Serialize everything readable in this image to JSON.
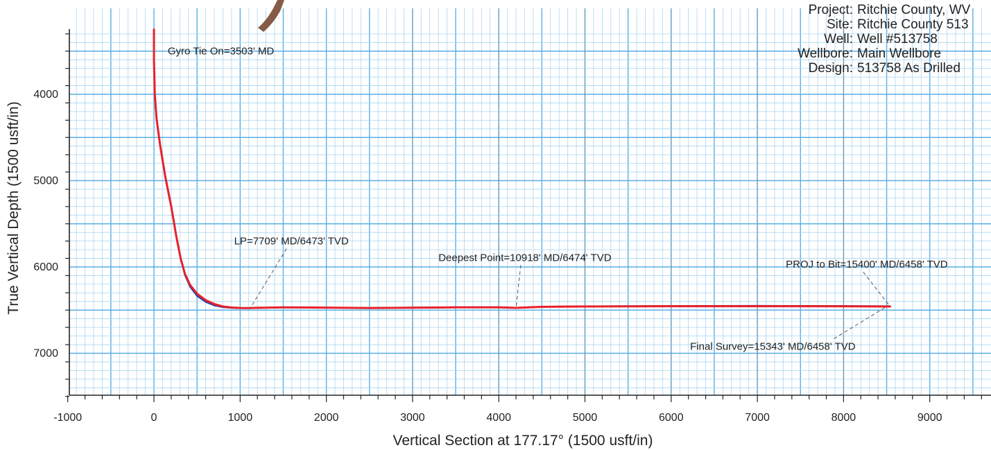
{
  "header": {
    "rows": [
      {
        "label": "Project:",
        "value": "Ritchie County, WV"
      },
      {
        "label": "Site:",
        "value": "Ritchie County 513"
      },
      {
        "label": "Well:",
        "value": "Well #513758"
      },
      {
        "label": "Wellbore:",
        "value": "Main Wellbore"
      },
      {
        "label": "Design:",
        "value": "513758 As Drilled"
      }
    ]
  },
  "chart_data": {
    "type": "line",
    "title": "",
    "xlabel": "Vertical Section at 177.17° (1500 usft/in)",
    "ylabel": "True Vertical Depth (1500 usft/in)",
    "xlim": [
      -1000,
      9600
    ],
    "ylim": [
      3250,
      7500
    ],
    "y_inverted": true,
    "grid": true,
    "x_ticks": [
      -1000,
      0,
      1000,
      2000,
      3000,
      4000,
      5000,
      6000,
      7000,
      8000,
      9000
    ],
    "y_ticks": [
      4000,
      5000,
      6000,
      7000
    ],
    "series": [
      {
        "color": "#e8212b",
        "x": [
          0,
          0,
          10,
          30,
          70,
          130,
          200,
          260,
          310,
          360,
          420,
          500,
          600,
          700,
          800,
          900,
          1000,
          1100,
          1200,
          1500,
          1800,
          2200,
          2500,
          3000,
          3500,
          4000,
          4200,
          4300,
          4500,
          5000,
          6000,
          7000,
          8000,
          8540
        ],
        "y": [
          3250,
          3600,
          4000,
          4280,
          4580,
          4950,
          5300,
          5650,
          5900,
          6080,
          6210,
          6310,
          6385,
          6430,
          6458,
          6470,
          6475,
          6476,
          6473,
          6468,
          6470,
          6473,
          6476,
          6472,
          6468,
          6468,
          6474,
          6470,
          6462,
          6458,
          6455,
          6455,
          6456,
          6458
        ]
      },
      {
        "color": "#2b3fa8",
        "x": [
          0,
          0,
          10,
          30,
          70,
          130,
          200,
          260,
          310,
          360,
          420,
          500,
          600,
          700,
          800,
          900,
          1000,
          1100,
          1200,
          1500,
          1800,
          2200,
          2500,
          3000,
          3500,
          4000,
          4200,
          4300,
          4500,
          5000,
          6000,
          7000,
          8000,
          8540
        ],
        "y": [
          3250,
          3600,
          4000,
          4270,
          4570,
          4940,
          5290,
          5640,
          5905,
          6095,
          6230,
          6335,
          6405,
          6445,
          6465,
          6474,
          6477,
          6477,
          6474,
          6469,
          6470,
          6472,
          6475,
          6471,
          6467,
          6467,
          6473,
          6469,
          6460,
          6456,
          6452,
          6451,
          6452,
          6455
        ]
      }
    ],
    "annotations": [
      {
        "text": "Gyro Tie On=3503' MD",
        "x": 160,
        "y": 3540
      },
      {
        "text": "LP=7709' MD/6473' TVD",
        "x": 930,
        "y": 5740,
        "point_x": 1120,
        "point_y": 6473
      },
      {
        "text": "Deepest Point=10918' MD/6474' TVD",
        "x": 3300,
        "y": 5930,
        "point_x": 4200,
        "point_y": 6474
      },
      {
        "text": "PROJ to Bit=15400' MD/6458' TVD",
        "x": 7330,
        "y": 6010,
        "point_x": 8540,
        "point_y": 6458
      },
      {
        "text": "Final Survey=15343' MD/6458' TVD",
        "x": 6220,
        "y": 6960,
        "point_x": 8500,
        "point_y": 6458
      }
    ]
  },
  "colors": {
    "grid_major": "#5aaee6",
    "grid_minor": "#a9d6f2",
    "grid_dark": "#7b7b7b",
    "axis": "#222222",
    "trajectory_actual": "#e8212b",
    "trajectory_plan": "#2b3fa8",
    "leader": "#555555",
    "scribble": "#7a4a33"
  }
}
